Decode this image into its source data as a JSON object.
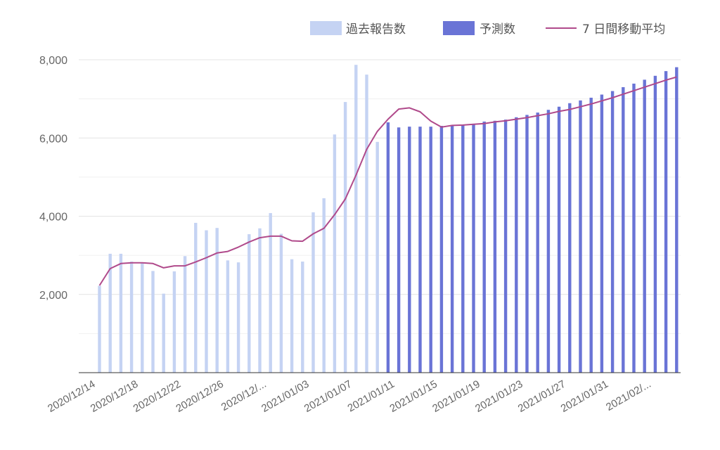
{
  "chart_data": {
    "type": "bar",
    "title": "",
    "xlabel": "",
    "ylabel": "",
    "ylim": [
      0,
      8500
    ],
    "y_ticks": [
      2000,
      4000,
      6000,
      8000
    ],
    "y_tick_labels": [
      "2,000",
      "4,000",
      "6,000",
      "8,000"
    ],
    "grid": true,
    "legend_position": "top-right",
    "x_tick_labels": [
      "2020/12/14",
      "2020/12/18",
      "2020/12/22",
      "2020/12/26",
      "2020/12/...",
      "2021/01/03",
      "2021/01/07",
      "2021/01/11",
      "2021/01/15",
      "2021/01/19",
      "2021/01/23",
      "2021/01/27",
      "2021/01/31",
      "2021/02/..."
    ],
    "series": [
      {
        "name": "過去報告数",
        "type": "bar",
        "color": "#c5d3f3",
        "values": [
          2220,
          3040,
          3040,
          2840,
          2820,
          2600,
          2020,
          2590,
          2980,
          3830,
          3640,
          3700,
          2870,
          2820,
          3540,
          3690,
          4080,
          3550,
          2900,
          2840,
          4100,
          4460,
          6090,
          6920,
          7870,
          7620,
          5900,
          null,
          null,
          null,
          null,
          null,
          null,
          null,
          null,
          null,
          null,
          null,
          null,
          null,
          null,
          null,
          null,
          null,
          null,
          null,
          null,
          null,
          null,
          null,
          null,
          null,
          null,
          null,
          null
        ]
      },
      {
        "name": "予測数",
        "type": "bar",
        "color": "#6a74d6",
        "values": [
          null,
          null,
          null,
          null,
          null,
          null,
          null,
          null,
          null,
          null,
          null,
          null,
          null,
          null,
          null,
          null,
          null,
          null,
          null,
          null,
          null,
          null,
          null,
          null,
          null,
          null,
          null,
          6400,
          6270,
          6290,
          6290,
          6290,
          6310,
          6320,
          6330,
          6350,
          6420,
          6440,
          6470,
          6530,
          6590,
          6650,
          6720,
          6800,
          6890,
          6960,
          7030,
          7110,
          7200,
          7300,
          7390,
          7490,
          7590,
          7710,
          7810
        ]
      },
      {
        "name": "7 日間移動平均",
        "type": "line",
        "color": "#b04a8b",
        "values": [
          2230,
          2660,
          2790,
          2810,
          2810,
          2790,
          2680,
          2730,
          2730,
          2830,
          2940,
          3060,
          3100,
          3210,
          3340,
          3450,
          3490,
          3490,
          3370,
          3360,
          3550,
          3690,
          4040,
          4440,
          5050,
          5710,
          6170,
          6480,
          6740,
          6770,
          6670,
          6430,
          6280,
          6320,
          6330,
          6350,
          6370,
          6410,
          6440,
          6480,
          6520,
          6570,
          6620,
          6680,
          6730,
          6800,
          6870,
          6950,
          7030,
          7120,
          7210,
          7300,
          7390,
          7480,
          7560
        ]
      }
    ]
  }
}
